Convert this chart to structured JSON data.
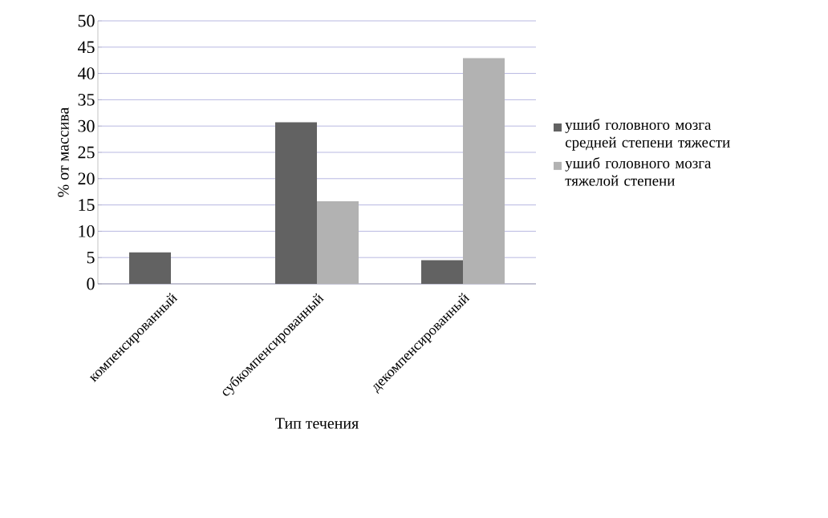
{
  "chart_data": {
    "type": "bar",
    "xlabel": "Тип течения",
    "ylabel": "% от массива",
    "categories": [
      "компенсированный",
      "субкомпенсированный",
      "декомпенсированный"
    ],
    "series": [
      {
        "name": "ушиб головного мозга средней степени тяжести",
        "color": "#626262",
        "values": [
          6,
          30.7,
          4.5
        ]
      },
      {
        "name": "ушиб головного мозга тяжелой степени",
        "color": "#b2b2b2",
        "values": [
          0,
          15.7,
          42.9
        ]
      }
    ],
    "ylim": [
      0,
      50
    ],
    "yticks": [
      0,
      5,
      10,
      15,
      20,
      25,
      30,
      35,
      40,
      45,
      50
    ],
    "grid": "y",
    "legend": "right"
  }
}
